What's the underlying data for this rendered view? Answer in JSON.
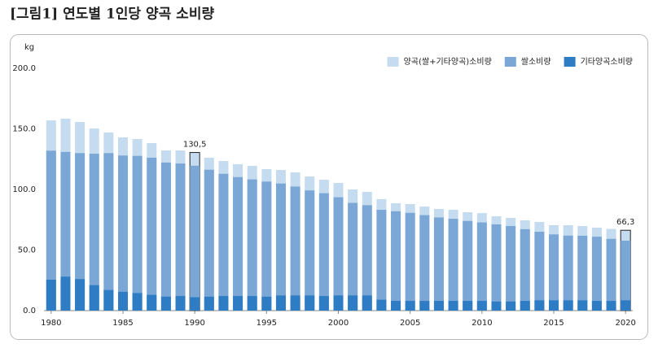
{
  "chart_data": {
    "type": "bar",
    "title": "[그림1] 연도별 1인당 양곡 소비량",
    "y_unit": "kg",
    "x": [
      1980,
      1981,
      1982,
      1983,
      1984,
      1985,
      1986,
      1987,
      1988,
      1989,
      1990,
      1991,
      1992,
      1993,
      1994,
      1995,
      1996,
      1997,
      1998,
      1999,
      2000,
      2001,
      2002,
      2003,
      2004,
      2005,
      2006,
      2007,
      2008,
      2009,
      2010,
      2011,
      2012,
      2013,
      2014,
      2015,
      2016,
      2017,
      2018,
      2019,
      2020
    ],
    "xlim": [
      1979.5,
      2020.5
    ],
    "xticks": [
      1980,
      1985,
      1990,
      1995,
      2000,
      2005,
      2010,
      2015,
      2020
    ],
    "ylim": [
      0,
      200
    ],
    "yticks": [
      {
        "value": 0,
        "label": "0.0"
      },
      {
        "value": 50,
        "label": "50.0"
      },
      {
        "value": 100,
        "label": "100.0"
      },
      {
        "value": 150,
        "label": "150.0"
      },
      {
        "value": 200,
        "label": "200.0"
      }
    ],
    "legend": "upper right",
    "series": [
      {
        "name": "양곡(쌀+기타양곡)소비량",
        "color": "#c5dcf0",
        "values": [
          157,
          158.4,
          155.7,
          150.3,
          147,
          143,
          141.6,
          138.3,
          132.2,
          132.2,
          130.5,
          126.2,
          123.5,
          120.8,
          119.5,
          116.8,
          116.1,
          114.1,
          110.7,
          108,
          105.4,
          100,
          98,
          92,
          88.6,
          87.9,
          85.9,
          83.9,
          83.2,
          81.2,
          80.5,
          77.9,
          76.5,
          74.5,
          73.2,
          70.5,
          70.5,
          69.8,
          68.5,
          67.4,
          66.3
        ],
        "value_labels": [
          null,
          null,
          null,
          null,
          null,
          null,
          null,
          null,
          null,
          null,
          "130,5",
          null,
          null,
          null,
          null,
          null,
          null,
          null,
          null,
          null,
          null,
          null,
          null,
          null,
          null,
          null,
          null,
          null,
          null,
          null,
          null,
          null,
          null,
          null,
          null,
          null,
          null,
          null,
          null,
          null,
          "66,3"
        ]
      },
      {
        "name": "쌀소비량",
        "color": "#7ba7d6",
        "values": [
          132,
          131,
          130,
          129.5,
          130,
          128,
          127.7,
          126.2,
          122.2,
          121.4,
          119.6,
          116.3,
          112.9,
          110.2,
          108.3,
          106.5,
          104.9,
          102.4,
          99.2,
          96.9,
          93.6,
          88.9,
          87,
          83.2,
          82,
          80.7,
          78.8,
          76.9,
          75.8,
          74,
          72.8,
          71.2,
          69.8,
          67.2,
          65.1,
          62.9,
          61.9,
          61.8,
          61,
          59.2,
          57.7
        ]
      },
      {
        "name": "기타양곡소비량",
        "color": "#2e7cc4",
        "values": [
          25.5,
          28,
          26,
          21,
          17,
          15.5,
          14.5,
          13,
          11.5,
          12,
          11,
          11.5,
          12,
          12,
          12,
          11.5,
          12.5,
          12.5,
          12.5,
          12,
          12.5,
          12.5,
          12.5,
          9,
          8,
          8,
          8,
          8,
          8,
          8,
          8,
          7.5,
          7.5,
          8,
          8.5,
          8.5,
          8.5,
          8.5,
          8,
          8,
          8.5
        ]
      }
    ]
  }
}
